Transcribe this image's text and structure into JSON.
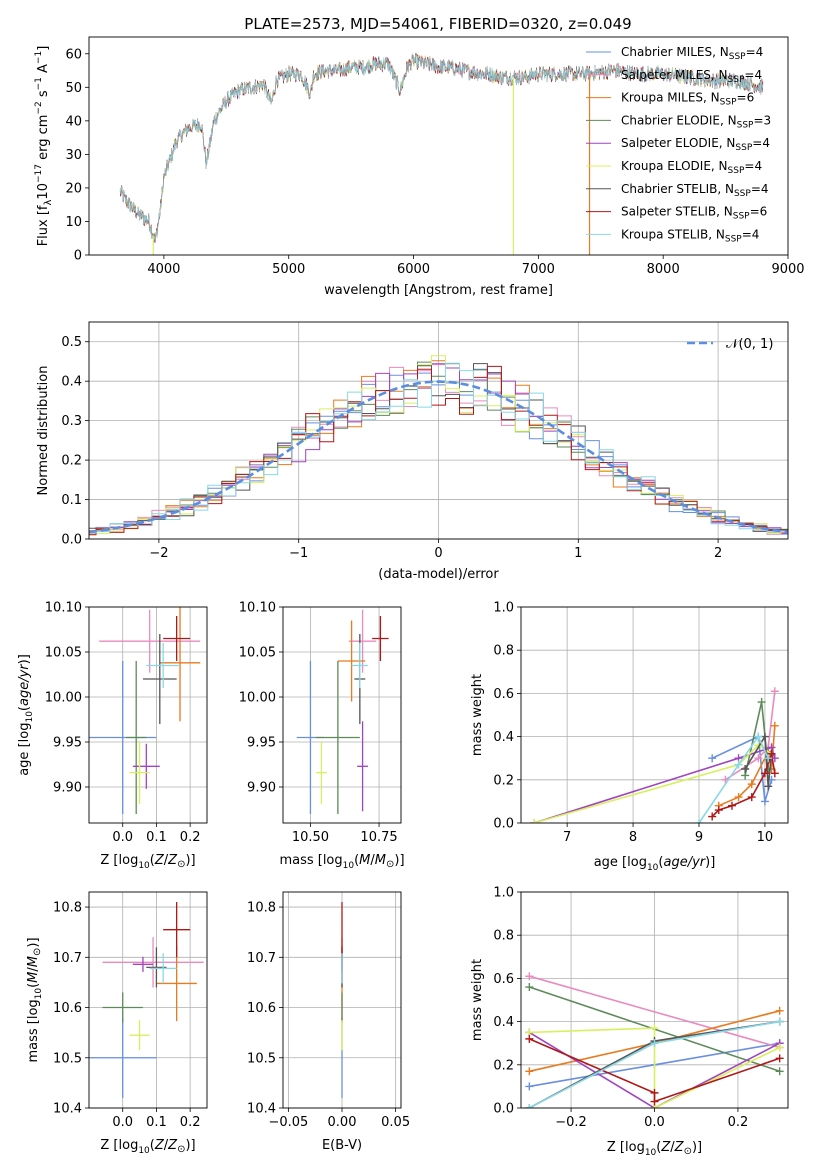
{
  "figure_title": "PLATE=2573, MJD=54061, FIBERID=0320, z=0.049",
  "colors": {
    "c0": "#6a8fe0",
    "c1": "#e98bbf",
    "c2": "#e87a1f",
    "c3": "#5e8a5a",
    "c4": "#a044c0",
    "c5": "#d8f060",
    "c6": "#555555",
    "c7": "#b01818",
    "c8": "#88d8e8",
    "normal": "#5b8ee0"
  },
  "chart_data": [
    {
      "id": "spectrum",
      "type": "line",
      "title": "PLATE=2573, MJD=54061, FIBERID=0320, z=0.049",
      "xlabel": "wavelength [Angstrom, rest frame]",
      "ylabel": "Flux [f_λ 10^-17 erg cm^-2 s^-1 A^-1]",
      "xlim": [
        3400,
        9000
      ],
      "ylim": [
        0,
        65
      ],
      "xticks": [
        "4000",
        "5000",
        "6000",
        "7000",
        "8000",
        "9000"
      ],
      "yticks": [
        "0",
        "10",
        "20",
        "30",
        "40",
        "50",
        "60"
      ],
      "legend_position": "top-right",
      "series": [
        {
          "name": "Chabrier MILES, N_SSP=4",
          "label_main": "Chabrier MILES, N",
          "label_sub": "SSP",
          "label_tail": "=4",
          "color_key": "c0"
        },
        {
          "name": "Salpeter MILES, N_SSP=4",
          "label_main": "Salpeter MILES, N",
          "label_sub": "SSP",
          "label_tail": "=4",
          "color_key": "c1"
        },
        {
          "name": "Kroupa MILES, N_SSP=6",
          "label_main": "Kroupa MILES, N",
          "label_sub": "SSP",
          "label_tail": "=6",
          "color_key": "c2"
        },
        {
          "name": "Chabrier ELODIE, N_SSP=3",
          "label_main": "Chabrier ELODIE, N",
          "label_sub": "SSP",
          "label_tail": "=3",
          "color_key": "c3"
        },
        {
          "name": "Salpeter ELODIE, N_SSP=4",
          "label_main": "Salpeter ELODIE, N",
          "label_sub": "SSP",
          "label_tail": "=4",
          "color_key": "c4"
        },
        {
          "name": "Kroupa ELODIE, N_SSP=4",
          "label_main": "Kroupa ELODIE, N",
          "label_sub": "SSP",
          "label_tail": "=4",
          "color_key": "c5"
        },
        {
          "name": "Chabrier STELIB, N_SSP=4",
          "label_main": "Chabrier STELIB, N",
          "label_sub": "SSP",
          "label_tail": "=4",
          "color_key": "c6"
        },
        {
          "name": "Salpeter STELIB, N_SSP=6",
          "label_main": "Salpeter STELIB, N",
          "label_sub": "SSP",
          "label_tail": "=6",
          "color_key": "c7"
        },
        {
          "name": "Kroupa STELIB, N_SSP=4",
          "label_main": "Kroupa STELIB, N",
          "label_sub": "SSP",
          "label_tail": "=4",
          "color_key": "c8"
        }
      ],
      "spectrum_knots": {
        "x": [
          3650,
          3700,
          3800,
          3880,
          3930,
          3970,
          4000,
          4100,
          4200,
          4300,
          4340,
          4400,
          4500,
          4600,
          4700,
          4800,
          4860,
          4900,
          5000,
          5100,
          5175,
          5200,
          5300,
          5400,
          5500,
          5600,
          5700,
          5800,
          5893,
          5950,
          6000,
          6100,
          6200,
          6300,
          6400,
          6563,
          6600,
          6700,
          6800,
          6900,
          7000,
          7200,
          7400,
          7600,
          7800,
          8000,
          8200,
          8400,
          8600,
          8800
        ],
        "y": [
          19,
          16,
          12,
          10,
          4,
          13,
          23,
          34,
          38,
          39,
          27,
          40,
          46,
          49,
          50,
          51,
          45,
          52,
          54,
          54,
          48,
          54,
          55,
          55,
          56,
          56,
          57,
          57,
          49,
          56,
          58,
          57,
          56,
          56,
          55,
          54,
          54,
          53,
          53,
          53,
          54,
          54,
          54,
          55,
          54,
          54,
          53,
          52,
          52,
          50
        ]
      },
      "spikes": [
        {
          "x": 3915,
          "color_key": "c5",
          "y": 0
        },
        {
          "x": 6800,
          "color_key": "c5",
          "y": 0
        },
        {
          "x": 7410,
          "color_key": "c2",
          "y": 0
        }
      ]
    },
    {
      "id": "residuals",
      "type": "histogram",
      "xlabel": "(data-model)/error",
      "ylabel": "Normed distribution",
      "xlim": [
        -2.5,
        2.5
      ],
      "ylim": [
        0,
        0.55
      ],
      "xticks": [
        "−2",
        "−1",
        "0",
        "1",
        "2"
      ],
      "yticks": [
        "0.0",
        "0.1",
        "0.2",
        "0.3",
        "0.4",
        "0.5"
      ],
      "legend_position": "top-right",
      "legend_label": "𝒩(0, 1)",
      "bin_width": 0.1,
      "series_color_keys": [
        "c0",
        "c1",
        "c2",
        "c3",
        "c4",
        "c5",
        "c6",
        "c7",
        "c8"
      ],
      "normal_mean": 0,
      "normal_sigma": 1
    },
    {
      "id": "age_vs_Z",
      "type": "scatter",
      "xlabel": "Z [log10(Z/Z⊙)]",
      "ylabel": "age  [log10(age/yr)]",
      "xlim": [
        -0.1,
        0.25
      ],
      "ylim": [
        9.86,
        10.1
      ],
      "xticks": [
        "0.0",
        "0.1",
        "0.2"
      ],
      "yticks": [
        "9.90",
        "9.95",
        "10.00",
        "10.05",
        "10.10"
      ],
      "points": [
        {
          "color_key": "c0",
          "x": 0.0,
          "xerr": 0.1,
          "y": 9.955,
          "yerr": 0.085
        },
        {
          "color_key": "c1",
          "x": 0.08,
          "xerr": 0.15,
          "y": 10.062,
          "yerr": 0.035
        },
        {
          "color_key": "c2",
          "x": 0.17,
          "xerr": 0.06,
          "y": 10.038,
          "yerr": 0.065
        },
        {
          "color_key": "c3",
          "x": 0.04,
          "xerr": 0.03,
          "y": 9.955,
          "yerr": 0.085
        },
        {
          "color_key": "c4",
          "x": 0.07,
          "xerr": 0.04,
          "y": 9.923,
          "yerr": 0.025
        },
        {
          "color_key": "c5",
          "x": 0.05,
          "xerr": 0.03,
          "y": 9.916,
          "yerr": 0.035
        },
        {
          "color_key": "c6",
          "x": 0.11,
          "xerr": 0.05,
          "y": 10.02,
          "yerr": 0.05
        },
        {
          "color_key": "c7",
          "x": 0.16,
          "xerr": 0.04,
          "y": 10.065,
          "yerr": 0.025
        },
        {
          "color_key": "c8",
          "x": 0.12,
          "xerr": 0.05,
          "y": 10.035,
          "yerr": 0.025
        }
      ]
    },
    {
      "id": "age_vs_mass",
      "type": "scatter",
      "xlabel": "mass [log10(M/M⊙)]",
      "ylabel": "",
      "xlim": [
        10.4,
        10.83
      ],
      "ylim": [
        9.86,
        10.1
      ],
      "xticks": [
        "10.50",
        "10.75"
      ],
      "yticks": [
        "9.90",
        "9.95",
        "10.00",
        "10.05",
        "10.10"
      ],
      "points": [
        {
          "color_key": "c0",
          "x": 10.5,
          "xerr": 0.05,
          "y": 9.955,
          "yerr": 0.085
        },
        {
          "color_key": "c1",
          "x": 10.69,
          "xerr": 0.05,
          "y": 10.062,
          "yerr": 0.035
        },
        {
          "color_key": "c2",
          "x": 10.65,
          "xerr": 0.05,
          "y": 10.04,
          "yerr": 0.045
        },
        {
          "color_key": "c3",
          "x": 10.6,
          "xerr": 0.08,
          "y": 9.955,
          "yerr": 0.085
        },
        {
          "color_key": "c4",
          "x": 10.69,
          "xerr": 0.02,
          "y": 9.923,
          "yerr": 0.05
        },
        {
          "color_key": "c5",
          "x": 10.54,
          "xerr": 0.02,
          "y": 9.916,
          "yerr": 0.035
        },
        {
          "color_key": "c6",
          "x": 10.68,
          "xerr": 0.02,
          "y": 10.02,
          "yerr": 0.05
        },
        {
          "color_key": "c7",
          "x": 10.755,
          "xerr": 0.03,
          "y": 10.065,
          "yerr": 0.025
        },
        {
          "color_key": "c8",
          "x": 10.68,
          "xerr": 0.03,
          "y": 10.035,
          "yerr": 0.025
        }
      ]
    },
    {
      "id": "weight_vs_age",
      "type": "line",
      "xlabel": "age  [log10(age/yr)]",
      "ylabel": "mass weight",
      "xlim": [
        6.3,
        10.35
      ],
      "ylim": [
        0,
        1
      ],
      "xticks": [
        "7",
        "8",
        "9",
        "10"
      ],
      "yticks": [
        "0.0",
        "0.2",
        "0.4",
        "0.6",
        "0.8",
        "1.0"
      ],
      "series": [
        {
          "color_key": "c0",
          "x": [
            9.2,
            9.9,
            10.0,
            10.1
          ],
          "y": [
            0.3,
            0.4,
            0.1,
            0.2
          ]
        },
        {
          "color_key": "c1",
          "x": [
            9.4,
            9.9,
            10.05,
            10.15
          ],
          "y": [
            0.2,
            0.3,
            0.35,
            0.61
          ]
        },
        {
          "color_key": "c2",
          "x": [
            9.3,
            9.6,
            9.8,
            10.05,
            10.1,
            10.15
          ],
          "y": [
            0.08,
            0.12,
            0.18,
            0.33,
            0.25,
            0.45
          ]
        },
        {
          "color_key": "c3",
          "x": [
            9.7,
            9.95,
            10.05
          ],
          "y": [
            0.22,
            0.56,
            0.25
          ]
        },
        {
          "color_key": "c4",
          "x": [
            6.5,
            9.6,
            10.1,
            10.15
          ],
          "y": [
            0.0,
            0.3,
            0.35,
            0.3
          ]
        },
        {
          "color_key": "c5",
          "x": [
            6.5,
            9.6,
            9.9,
            10.1
          ],
          "y": [
            0.0,
            0.27,
            0.36,
            0.32
          ]
        },
        {
          "color_key": "c6",
          "x": [
            9.7,
            10.0,
            10.05,
            10.1
          ],
          "y": [
            0.25,
            0.4,
            0.17,
            0.32
          ]
        },
        {
          "color_key": "c7",
          "x": [
            9.2,
            9.3,
            9.5,
            9.8,
            10.0,
            10.1,
            10.15
          ],
          "y": [
            0.03,
            0.06,
            0.08,
            0.12,
            0.23,
            0.32,
            0.23
          ]
        },
        {
          "color_key": "c8",
          "x": [
            9.0,
            9.6,
            9.9,
            10.05
          ],
          "y": [
            0.0,
            0.27,
            0.4,
            0.3
          ]
        }
      ]
    },
    {
      "id": "mass_vs_Z",
      "type": "scatter",
      "xlabel": "Z [log10(Z/Z⊙)]",
      "ylabel": "mass [log10(M/M⊙)]",
      "xlim": [
        -0.1,
        0.25
      ],
      "ylim": [
        10.4,
        10.83
      ],
      "xticks": [
        "0.0",
        "0.1",
        "0.2"
      ],
      "yticks": [
        "10.4",
        "10.5",
        "10.6",
        "10.7",
        "10.8"
      ],
      "points": [
        {
          "color_key": "c0",
          "x": 0.0,
          "xerr": 0.1,
          "y": 10.5,
          "yerr": 0.08
        },
        {
          "color_key": "c1",
          "x": 0.09,
          "xerr": 0.15,
          "y": 10.69,
          "yerr": 0.05
        },
        {
          "color_key": "c2",
          "x": 0.16,
          "xerr": 0.06,
          "y": 10.648,
          "yerr": 0.075
        },
        {
          "color_key": "c3",
          "x": 0.0,
          "xerr": 0.06,
          "y": 10.6,
          "yerr": 0.03
        },
        {
          "color_key": "c4",
          "x": 0.06,
          "xerr": 0.03,
          "y": 10.686,
          "yerr": 0.015
        },
        {
          "color_key": "c5",
          "x": 0.05,
          "xerr": 0.03,
          "y": 10.545,
          "yerr": 0.03
        },
        {
          "color_key": "c6",
          "x": 0.1,
          "xerr": 0.03,
          "y": 10.68,
          "yerr": 0.04
        },
        {
          "color_key": "c7",
          "x": 0.16,
          "xerr": 0.04,
          "y": 10.755,
          "yerr": 0.055
        },
        {
          "color_key": "c8",
          "x": 0.12,
          "xerr": 0.04,
          "y": 10.678,
          "yerr": 0.03
        }
      ]
    },
    {
      "id": "mass_vs_ebv",
      "type": "scatter",
      "xlabel": "E(B-V)",
      "ylabel": "",
      "xlim": [
        -0.055,
        0.055
      ],
      "ylim": [
        10.4,
        10.83
      ],
      "xticks": [
        "−0.05",
        "0.00",
        "0.05"
      ],
      "yticks": [
        "10.4",
        "10.5",
        "10.6",
        "10.7",
        "10.8"
      ],
      "points": [
        {
          "color_key": "c0",
          "x": 0.0,
          "xerr": 0,
          "y": 10.5,
          "yerr": 0.08
        },
        {
          "color_key": "c1",
          "x": 0.0,
          "xerr": 0,
          "y": 10.69,
          "yerr": 0.05
        },
        {
          "color_key": "c2",
          "x": 0.0,
          "xerr": 0,
          "y": 10.648,
          "yerr": 0.075
        },
        {
          "color_key": "c3",
          "x": 0.0,
          "xerr": 0,
          "y": 10.6,
          "yerr": 0.03
        },
        {
          "color_key": "c4",
          "x": 0.0,
          "xerr": 0,
          "y": 10.686,
          "yerr": 0.015
        },
        {
          "color_key": "c5",
          "x": 0.0,
          "xerr": 0,
          "y": 10.545,
          "yerr": 0.03
        },
        {
          "color_key": "c6",
          "x": 0.0,
          "xerr": 0,
          "y": 10.68,
          "yerr": 0.04
        },
        {
          "color_key": "c7",
          "x": 0.0,
          "xerr": 0,
          "y": 10.755,
          "yerr": 0.055
        },
        {
          "color_key": "c8",
          "x": 0.0,
          "xerr": 0,
          "y": 10.678,
          "yerr": 0.03
        }
      ]
    },
    {
      "id": "weight_vs_Z",
      "type": "line",
      "xlabel": "Z [log10(Z/Z⊙)]",
      "ylabel": "mass weight",
      "xlim": [
        -0.32,
        0.32
      ],
      "ylim": [
        0,
        1
      ],
      "xticks": [
        "−0.2",
        "0.0",
        "0.2"
      ],
      "yticks": [
        "0.0",
        "0.2",
        "0.4",
        "0.6",
        "0.8",
        "1.0"
      ],
      "series": [
        {
          "color_key": "c0",
          "x": [
            -0.3,
            0.0,
            0.3
          ],
          "y": [
            0.1,
            0.2,
            0.3
          ]
        },
        {
          "color_key": "c1",
          "x": [
            -0.3,
            0.3
          ],
          "y": [
            0.61,
            0.28
          ]
        },
        {
          "color_key": "c2",
          "x": [
            -0.3,
            0.0,
            0.3
          ],
          "y": [
            0.17,
            0.3,
            0.45
          ]
        },
        {
          "color_key": "c3",
          "x": [
            -0.3,
            0.3
          ],
          "y": [
            0.56,
            0.17
          ]
        },
        {
          "color_key": "c4",
          "x": [
            -0.3,
            0.0,
            0.3
          ],
          "y": [
            0.35,
            0.0,
            0.3
          ]
        },
        {
          "color_key": "c5",
          "x": [
            -0.3,
            0.0,
            0.0,
            0.3
          ],
          "y": [
            0.35,
            0.37,
            0.0,
            0.28
          ]
        },
        {
          "color_key": "c6",
          "x": [
            -0.3,
            0.0,
            0.3
          ],
          "y": [
            0.0,
            0.31,
            0.4
          ]
        },
        {
          "color_key": "c7",
          "x": [
            -0.3,
            0.0,
            0.0,
            0.3
          ],
          "y": [
            0.32,
            0.07,
            0.03,
            0.23
          ]
        },
        {
          "color_key": "c8",
          "x": [
            -0.3,
            0.0,
            0.3
          ],
          "y": [
            0.0,
            0.3,
            0.4
          ]
        }
      ]
    }
  ]
}
